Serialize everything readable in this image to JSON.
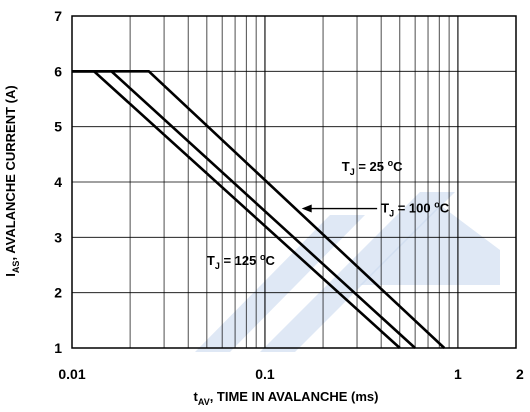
{
  "chart_data": {
    "type": "line",
    "xscale": "log",
    "xlim": [
      0.01,
      2
    ],
    "ylim": [
      1,
      7
    ],
    "grid": true,
    "x_ticks": [
      {
        "value": 0.01,
        "label": "0.01"
      },
      {
        "value": 0.1,
        "label": "0.1"
      },
      {
        "value": 1,
        "label": "1"
      },
      {
        "value": 2,
        "label": "2"
      }
    ],
    "y_ticks": [
      {
        "value": 1,
        "label": "1"
      },
      {
        "value": 2,
        "label": "2"
      },
      {
        "value": 3,
        "label": "3"
      },
      {
        "value": 4,
        "label": "4"
      },
      {
        "value": 5,
        "label": "5"
      },
      {
        "value": 6,
        "label": "6"
      },
      {
        "value": 7,
        "label": "7"
      }
    ],
    "xlabel": {
      "main": "t",
      "sub": "AV",
      "rest": ", TIME IN AVALANCHE (ms)"
    },
    "ylabel": {
      "main": "I",
      "sub": "AS",
      "rest": ", AVALANCHE CURRENT (A)"
    },
    "series": [
      {
        "name": "T_J = 25 oC",
        "points": [
          [
            0.01,
            6
          ],
          [
            0.025,
            6
          ],
          [
            0.85,
            1
          ]
        ]
      },
      {
        "name": "T_J = 100 oC",
        "points": [
          [
            0.01,
            6
          ],
          [
            0.016,
            6
          ],
          [
            0.6,
            1
          ]
        ]
      },
      {
        "name": "T_J = 125 oC",
        "points": [
          [
            0.01,
            6
          ],
          [
            0.013,
            6
          ],
          [
            0.5,
            1
          ]
        ]
      }
    ],
    "annotations": [
      {
        "series": 0,
        "pre": "T",
        "sub": "J",
        "mid": " = 25 ",
        "sup": "o",
        "post": "C"
      },
      {
        "series": 1,
        "pre": "T",
        "sub": "J",
        "mid": " = 100 ",
        "sup": "o",
        "post": "C"
      },
      {
        "series": 2,
        "pre": "T",
        "sub": "J",
        "mid": " = 125 ",
        "sup": "o",
        "post": "C"
      }
    ],
    "colors": {
      "line": "#000000",
      "grid": "#000000",
      "watermark": "#c9d9ee"
    }
  }
}
